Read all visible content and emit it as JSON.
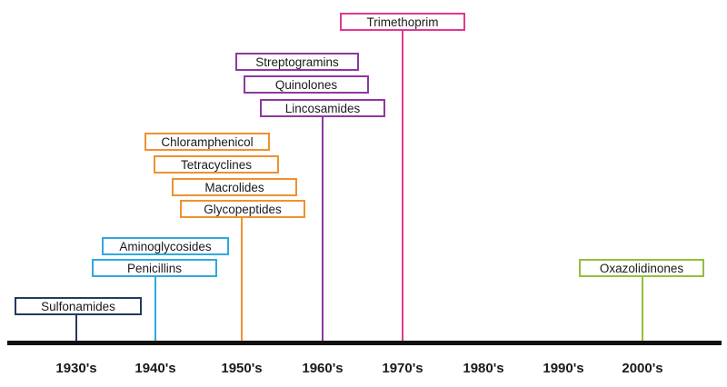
{
  "decades": [
    "1930's",
    "1940's",
    "1950's",
    "1960's",
    "1970's",
    "1980's",
    "1990's",
    "2000's"
  ],
  "groups": [
    {
      "decade": "1930's",
      "color": "#243a5e",
      "classes": [
        "Sulfonamides"
      ]
    },
    {
      "decade": "1940's",
      "color": "#2ea9df",
      "classes": [
        "Aminoglycosides",
        "Penicillins"
      ]
    },
    {
      "decade": "1950's",
      "color": "#f0912f",
      "classes": [
        "Chloramphenicol",
        "Tetracyclines",
        "Macrolides",
        "Glycopeptides"
      ]
    },
    {
      "decade": "1960's",
      "color": "#8b3a9e",
      "classes": [
        "Streptogramins",
        "Quinolones",
        "Lincosamides"
      ]
    },
    {
      "decade": "1970's",
      "color": "#e2388f",
      "classes": [
        "Trimethoprim"
      ]
    },
    {
      "decade": "2000's",
      "color": "#94bf3c",
      "classes": [
        "Oxazolidinones"
      ]
    }
  ]
}
